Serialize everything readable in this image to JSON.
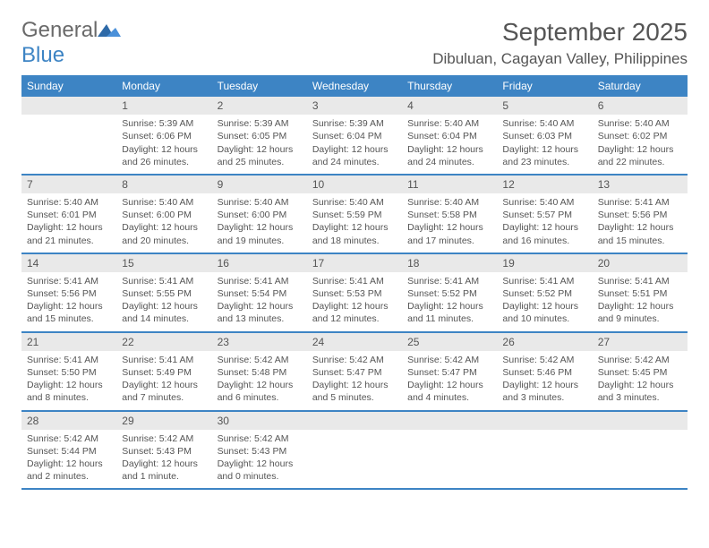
{
  "logo": {
    "general": "General",
    "blue": "Blue"
  },
  "title": "September 2025",
  "location": "Dibuluan, Cagayan Valley, Philippines",
  "colors": {
    "header_bg": "#3d84c4",
    "daynum_bg": "#e9e9e9",
    "text": "#555555",
    "border": "#3d84c4",
    "page_bg": "#ffffff",
    "logo_gray": "#6a6a6a",
    "logo_blue": "#3d84c4"
  },
  "typography": {
    "title_fontsize": 28,
    "location_fontsize": 17,
    "weekday_fontsize": 12,
    "daynum_fontsize": 12,
    "body_fontsize": 10.5
  },
  "weekdays": [
    "Sunday",
    "Monday",
    "Tuesday",
    "Wednesday",
    "Thursday",
    "Friday",
    "Saturday"
  ],
  "weeks": [
    [
      null,
      {
        "n": "1",
        "l1": "Sunrise: 5:39 AM",
        "l2": "Sunset: 6:06 PM",
        "l3": "Daylight: 12 hours",
        "l4": "and 26 minutes."
      },
      {
        "n": "2",
        "l1": "Sunrise: 5:39 AM",
        "l2": "Sunset: 6:05 PM",
        "l3": "Daylight: 12 hours",
        "l4": "and 25 minutes."
      },
      {
        "n": "3",
        "l1": "Sunrise: 5:39 AM",
        "l2": "Sunset: 6:04 PM",
        "l3": "Daylight: 12 hours",
        "l4": "and 24 minutes."
      },
      {
        "n": "4",
        "l1": "Sunrise: 5:40 AM",
        "l2": "Sunset: 6:04 PM",
        "l3": "Daylight: 12 hours",
        "l4": "and 24 minutes."
      },
      {
        "n": "5",
        "l1": "Sunrise: 5:40 AM",
        "l2": "Sunset: 6:03 PM",
        "l3": "Daylight: 12 hours",
        "l4": "and 23 minutes."
      },
      {
        "n": "6",
        "l1": "Sunrise: 5:40 AM",
        "l2": "Sunset: 6:02 PM",
        "l3": "Daylight: 12 hours",
        "l4": "and 22 minutes."
      }
    ],
    [
      {
        "n": "7",
        "l1": "Sunrise: 5:40 AM",
        "l2": "Sunset: 6:01 PM",
        "l3": "Daylight: 12 hours",
        "l4": "and 21 minutes."
      },
      {
        "n": "8",
        "l1": "Sunrise: 5:40 AM",
        "l2": "Sunset: 6:00 PM",
        "l3": "Daylight: 12 hours",
        "l4": "and 20 minutes."
      },
      {
        "n": "9",
        "l1": "Sunrise: 5:40 AM",
        "l2": "Sunset: 6:00 PM",
        "l3": "Daylight: 12 hours",
        "l4": "and 19 minutes."
      },
      {
        "n": "10",
        "l1": "Sunrise: 5:40 AM",
        "l2": "Sunset: 5:59 PM",
        "l3": "Daylight: 12 hours",
        "l4": "and 18 minutes."
      },
      {
        "n": "11",
        "l1": "Sunrise: 5:40 AM",
        "l2": "Sunset: 5:58 PM",
        "l3": "Daylight: 12 hours",
        "l4": "and 17 minutes."
      },
      {
        "n": "12",
        "l1": "Sunrise: 5:40 AM",
        "l2": "Sunset: 5:57 PM",
        "l3": "Daylight: 12 hours",
        "l4": "and 16 minutes."
      },
      {
        "n": "13",
        "l1": "Sunrise: 5:41 AM",
        "l2": "Sunset: 5:56 PM",
        "l3": "Daylight: 12 hours",
        "l4": "and 15 minutes."
      }
    ],
    [
      {
        "n": "14",
        "l1": "Sunrise: 5:41 AM",
        "l2": "Sunset: 5:56 PM",
        "l3": "Daylight: 12 hours",
        "l4": "and 15 minutes."
      },
      {
        "n": "15",
        "l1": "Sunrise: 5:41 AM",
        "l2": "Sunset: 5:55 PM",
        "l3": "Daylight: 12 hours",
        "l4": "and 14 minutes."
      },
      {
        "n": "16",
        "l1": "Sunrise: 5:41 AM",
        "l2": "Sunset: 5:54 PM",
        "l3": "Daylight: 12 hours",
        "l4": "and 13 minutes."
      },
      {
        "n": "17",
        "l1": "Sunrise: 5:41 AM",
        "l2": "Sunset: 5:53 PM",
        "l3": "Daylight: 12 hours",
        "l4": "and 12 minutes."
      },
      {
        "n": "18",
        "l1": "Sunrise: 5:41 AM",
        "l2": "Sunset: 5:52 PM",
        "l3": "Daylight: 12 hours",
        "l4": "and 11 minutes."
      },
      {
        "n": "19",
        "l1": "Sunrise: 5:41 AM",
        "l2": "Sunset: 5:52 PM",
        "l3": "Daylight: 12 hours",
        "l4": "and 10 minutes."
      },
      {
        "n": "20",
        "l1": "Sunrise: 5:41 AM",
        "l2": "Sunset: 5:51 PM",
        "l3": "Daylight: 12 hours",
        "l4": "and 9 minutes."
      }
    ],
    [
      {
        "n": "21",
        "l1": "Sunrise: 5:41 AM",
        "l2": "Sunset: 5:50 PM",
        "l3": "Daylight: 12 hours",
        "l4": "and 8 minutes."
      },
      {
        "n": "22",
        "l1": "Sunrise: 5:41 AM",
        "l2": "Sunset: 5:49 PM",
        "l3": "Daylight: 12 hours",
        "l4": "and 7 minutes."
      },
      {
        "n": "23",
        "l1": "Sunrise: 5:42 AM",
        "l2": "Sunset: 5:48 PM",
        "l3": "Daylight: 12 hours",
        "l4": "and 6 minutes."
      },
      {
        "n": "24",
        "l1": "Sunrise: 5:42 AM",
        "l2": "Sunset: 5:47 PM",
        "l3": "Daylight: 12 hours",
        "l4": "and 5 minutes."
      },
      {
        "n": "25",
        "l1": "Sunrise: 5:42 AM",
        "l2": "Sunset: 5:47 PM",
        "l3": "Daylight: 12 hours",
        "l4": "and 4 minutes."
      },
      {
        "n": "26",
        "l1": "Sunrise: 5:42 AM",
        "l2": "Sunset: 5:46 PM",
        "l3": "Daylight: 12 hours",
        "l4": "and 3 minutes."
      },
      {
        "n": "27",
        "l1": "Sunrise: 5:42 AM",
        "l2": "Sunset: 5:45 PM",
        "l3": "Daylight: 12 hours",
        "l4": "and 3 minutes."
      }
    ],
    [
      {
        "n": "28",
        "l1": "Sunrise: 5:42 AM",
        "l2": "Sunset: 5:44 PM",
        "l3": "Daylight: 12 hours",
        "l4": "and 2 minutes."
      },
      {
        "n": "29",
        "l1": "Sunrise: 5:42 AM",
        "l2": "Sunset: 5:43 PM",
        "l3": "Daylight: 12 hours",
        "l4": "and 1 minute."
      },
      {
        "n": "30",
        "l1": "Sunrise: 5:42 AM",
        "l2": "Sunset: 5:43 PM",
        "l3": "Daylight: 12 hours",
        "l4": "and 0 minutes."
      },
      null,
      null,
      null,
      null
    ]
  ]
}
